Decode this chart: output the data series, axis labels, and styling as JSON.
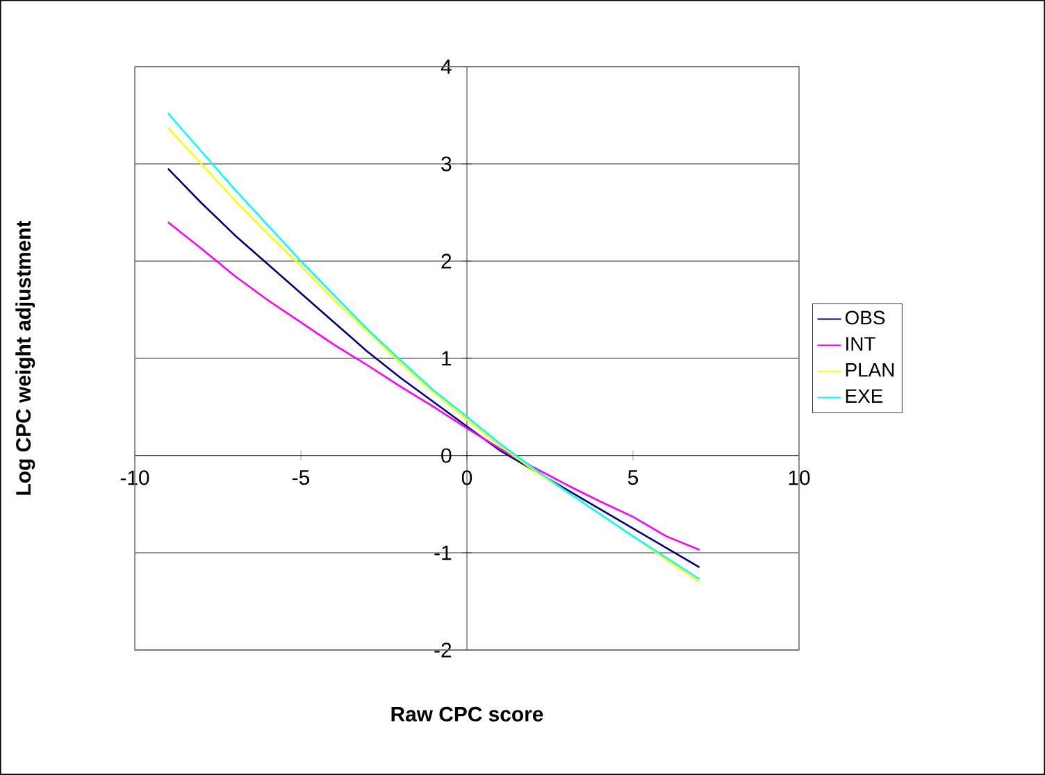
{
  "chart_data": {
    "type": "line",
    "xlabel": "Raw CPC score",
    "ylabel": "Log CPC weight adjustment",
    "x": [
      -9,
      -8,
      -7,
      -6,
      -5,
      -4,
      -3,
      -2,
      -1,
      0,
      1,
      2,
      3,
      4,
      5,
      6,
      7
    ],
    "series": [
      {
        "name": "OBS",
        "color": "#000080",
        "values": [
          2.95,
          2.6,
          2.27,
          1.97,
          1.67,
          1.37,
          1.07,
          0.8,
          0.55,
          0.3,
          0.05,
          -0.15,
          -0.35,
          -0.55,
          -0.75,
          -0.95,
          -1.15
        ]
      },
      {
        "name": "INT",
        "color": "#ff00ff",
        "values": [
          2.4,
          2.13,
          1.85,
          1.6,
          1.37,
          1.14,
          0.93,
          0.71,
          0.5,
          0.28,
          0.07,
          -0.12,
          -0.3,
          -0.47,
          -0.63,
          -0.83,
          -0.97
        ]
      },
      {
        "name": "PLAN",
        "color": "#ffff00",
        "values": [
          3.37,
          3.0,
          2.63,
          2.28,
          1.95,
          1.6,
          1.28,
          0.95,
          0.65,
          0.37,
          0.1,
          -0.15,
          -0.37,
          -0.6,
          -0.83,
          -1.07,
          -1.3
        ]
      },
      {
        "name": "EXE",
        "color": "#00ffff",
        "values": [
          3.52,
          3.13,
          2.74,
          2.37,
          2.0,
          1.65,
          1.3,
          0.98,
          0.67,
          0.4,
          0.12,
          -0.13,
          -0.37,
          -0.6,
          -0.83,
          -1.05,
          -1.27
        ]
      }
    ],
    "xlim": [
      -10,
      10
    ],
    "xticks": [
      -10,
      -5,
      0,
      5,
      10
    ],
    "ylim": [
      -2,
      4
    ],
    "yticks": [
      -2,
      -1,
      0,
      1,
      2,
      3,
      4
    ],
    "grid": "y",
    "legend": "right",
    "marker": "none",
    "line_style": "solid"
  }
}
